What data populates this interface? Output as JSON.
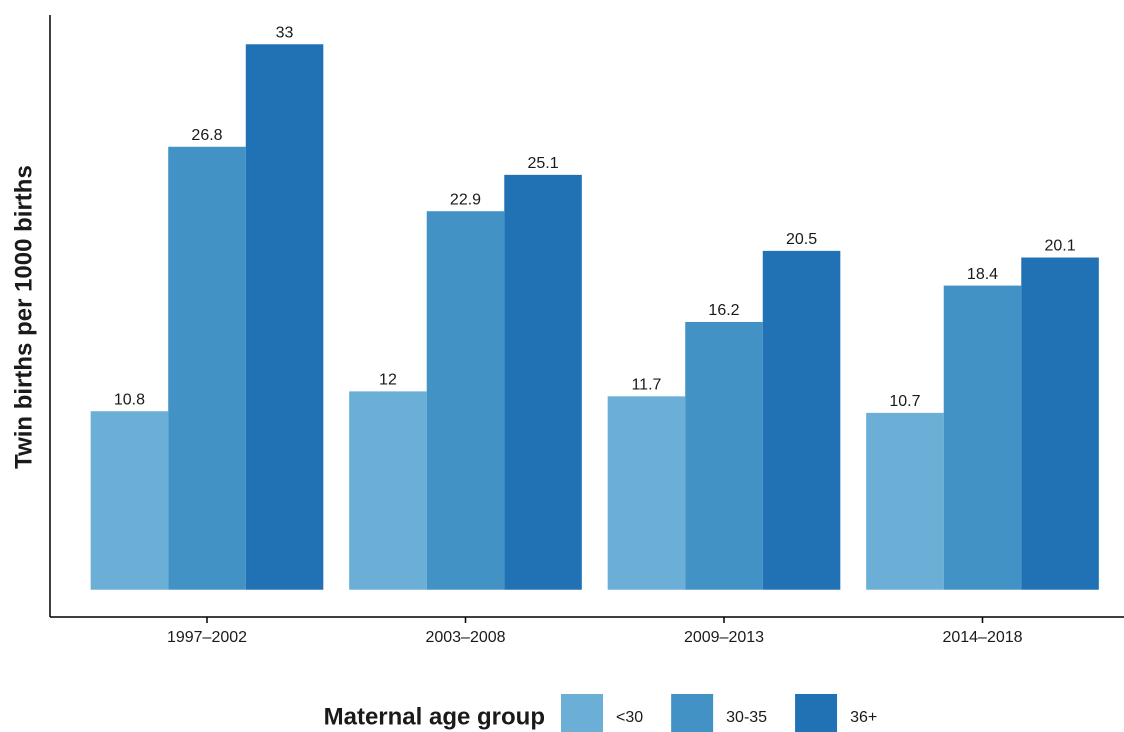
{
  "chart_data": {
    "type": "bar",
    "y_label": "Twin births per 1000 births",
    "legend_title": "Maternal age group",
    "categories": [
      "1997–2002",
      "2003–2008",
      "2009–2013",
      "2014–2018"
    ],
    "series": [
      {
        "name": "<30",
        "color": "#6baed6",
        "values": [
          10.8,
          12,
          11.7,
          10.7
        ]
      },
      {
        "name": "30-35",
        "color": "#4292c6",
        "values": [
          26.8,
          22.9,
          16.2,
          18.4
        ]
      },
      {
        "name": "36+",
        "color": "#2171b5",
        "values": [
          33,
          25.1,
          20.5,
          20.1
        ]
      }
    ],
    "ylim": [
      -1.65,
      34.65
    ],
    "legend": "bottom"
  }
}
